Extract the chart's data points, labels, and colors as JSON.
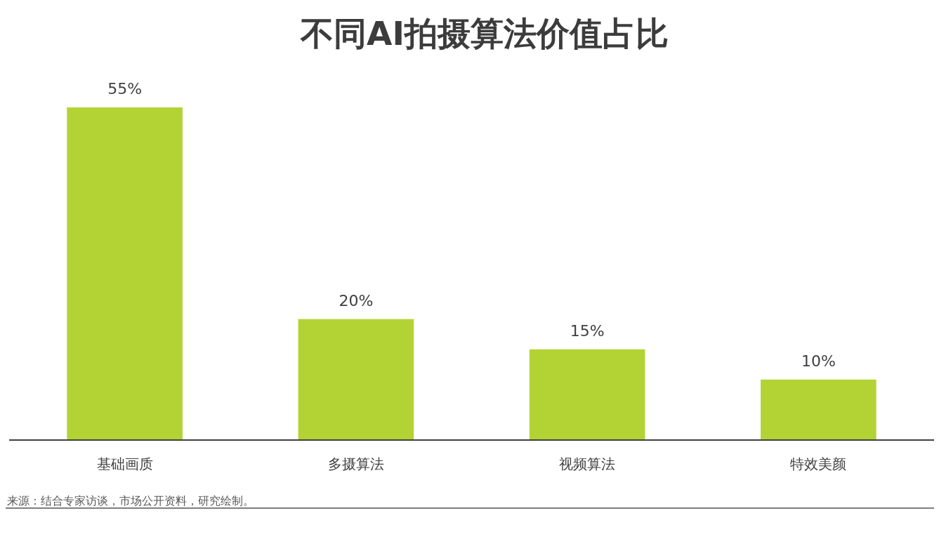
{
  "chart_data": {
    "type": "bar",
    "title": "不同AI拍摄算法价值占比",
    "categories": [
      "基础画质",
      "多摄算法",
      "视频算法",
      "特效美颜"
    ],
    "values": [
      55,
      20,
      15,
      10
    ],
    "value_labels": [
      "55%",
      "20%",
      "15%",
      "10%"
    ],
    "color": "#b3d334",
    "annotations": [
      "来源：结合专家访谈，市场公开资料，研究绘制。"
    ]
  }
}
